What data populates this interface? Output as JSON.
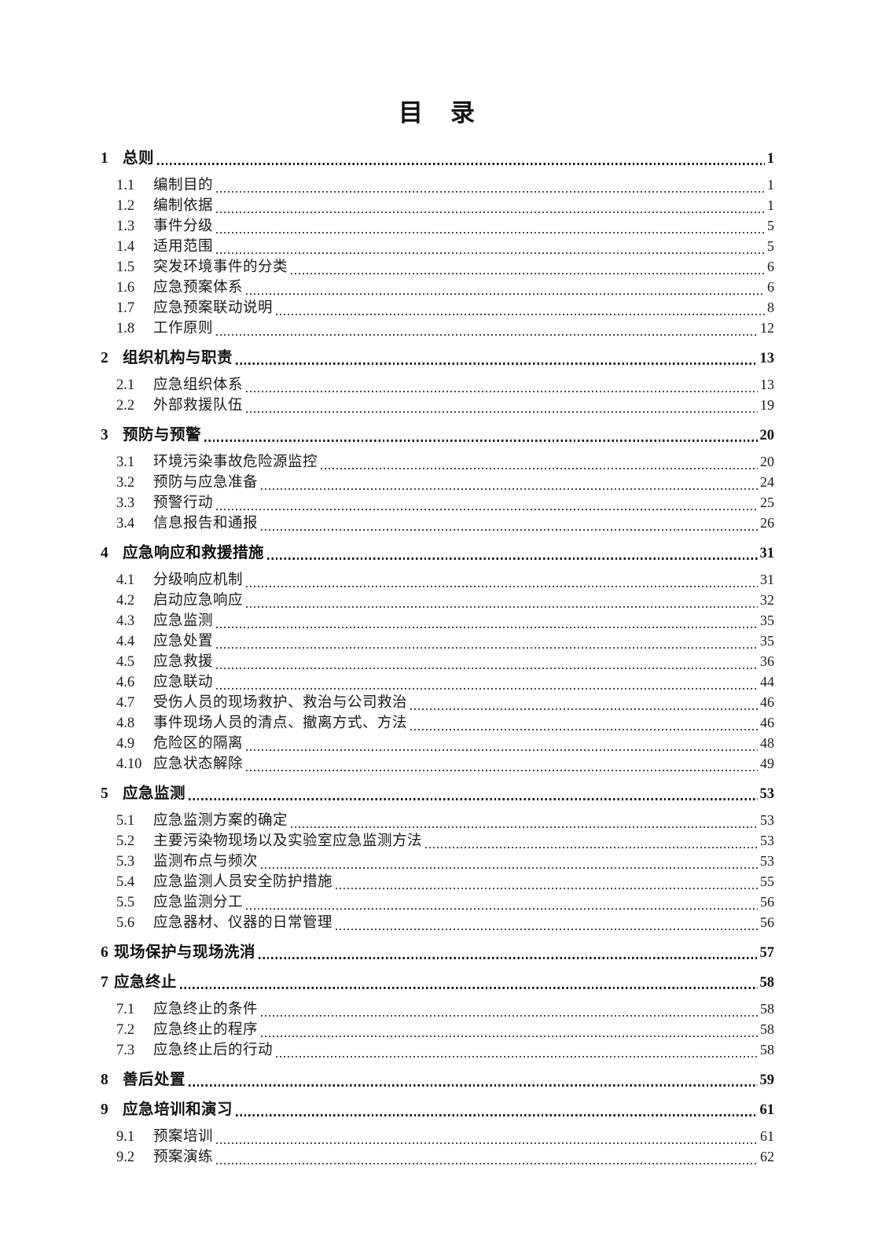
{
  "document": {
    "title": "目　录",
    "colors": {
      "text": "#1a1a1a",
      "background": "#ffffff"
    },
    "toc": {
      "entries": [
        {
          "level": 1,
          "num": "1",
          "title": "总则",
          "page": "1",
          "tight": false
        },
        {
          "level": 2,
          "num": "1.1",
          "title": "编制目的",
          "page": "1"
        },
        {
          "level": 2,
          "num": "1.2",
          "title": "编制依据",
          "page": "1"
        },
        {
          "level": 2,
          "num": "1.3",
          "title": "事件分级",
          "page": "5"
        },
        {
          "level": 2,
          "num": "1.4",
          "title": "适用范围",
          "page": "5"
        },
        {
          "level": 2,
          "num": "1.5",
          "title": "突发环境事件的分类",
          "page": "6"
        },
        {
          "level": 2,
          "num": "1.6",
          "title": "应急预案体系",
          "page": "6"
        },
        {
          "level": 2,
          "num": "1.7",
          "title": "应急预案联动说明",
          "page": "8"
        },
        {
          "level": 2,
          "num": "1.8",
          "title": "工作原则",
          "page": "12"
        },
        {
          "level": 1,
          "num": "2",
          "title": "组织机构与职责",
          "page": "13",
          "tight": false
        },
        {
          "level": 2,
          "num": "2.1",
          "title": "应急组织体系",
          "page": "13"
        },
        {
          "level": 2,
          "num": "2.2",
          "title": "外部救援队伍",
          "page": "19"
        },
        {
          "level": 1,
          "num": "3",
          "title": "预防与预警",
          "page": "20",
          "tight": false
        },
        {
          "level": 2,
          "num": "3.1",
          "title": "环境污染事故危险源监控",
          "page": "20"
        },
        {
          "level": 2,
          "num": "3.2",
          "title": "预防与应急准备",
          "page": "24"
        },
        {
          "level": 2,
          "num": "3.3",
          "title": "预警行动",
          "page": "25"
        },
        {
          "level": 2,
          "num": "3.4",
          "title": "信息报告和通报",
          "page": "26"
        },
        {
          "level": 1,
          "num": "4",
          "title": "应急响应和救援措施",
          "page": "31",
          "tight": false
        },
        {
          "level": 2,
          "num": "4.1",
          "title": "分级响应机制",
          "page": "31"
        },
        {
          "level": 2,
          "num": "4.2",
          "title": "启动应急响应",
          "page": "32"
        },
        {
          "level": 2,
          "num": "4.3",
          "title": "应急监测",
          "page": "35"
        },
        {
          "level": 2,
          "num": "4.4",
          "title": "应急处置",
          "page": "35"
        },
        {
          "level": 2,
          "num": "4.5",
          "title": "应急救援",
          "page": "36"
        },
        {
          "level": 2,
          "num": "4.6",
          "title": "应急联动",
          "page": "44"
        },
        {
          "level": 2,
          "num": "4.7",
          "title": "受伤人员的现场救护、救治与公司救治",
          "page": "46"
        },
        {
          "level": 2,
          "num": "4.8",
          "title": "事件现场人员的清点、撤离方式、方法",
          "page": "46"
        },
        {
          "level": 2,
          "num": "4.9",
          "title": "危险区的隔离",
          "page": "48"
        },
        {
          "level": 2,
          "num": "4.10",
          "title": "应急状态解除",
          "page": "49"
        },
        {
          "level": 1,
          "num": "5",
          "title": "应急监测",
          "page": "53",
          "tight": false
        },
        {
          "level": 2,
          "num": "5.1",
          "title": "应急监测方案的确定",
          "page": "53"
        },
        {
          "level": 2,
          "num": "5.2",
          "title": "主要污染物现场以及实验室应急监测方法",
          "page": "53"
        },
        {
          "level": 2,
          "num": "5.3",
          "title": "监测布点与频次",
          "page": "53"
        },
        {
          "level": 2,
          "num": "5.4",
          "title": "应急监测人员安全防护措施",
          "page": "55"
        },
        {
          "level": 2,
          "num": "5.5",
          "title": "应急监测分工",
          "page": "56"
        },
        {
          "level": 2,
          "num": "5.6",
          "title": "应急器材、仪器的日常管理",
          "page": "56"
        },
        {
          "level": 1,
          "num": "6",
          "title": "现场保护与现场洗消",
          "page": "57",
          "tight": true
        },
        {
          "level": 1,
          "num": "7",
          "title": "应急终止",
          "page": "58",
          "tight": true
        },
        {
          "level": 2,
          "num": "7.1",
          "title": "应急终止的条件",
          "page": "58"
        },
        {
          "level": 2,
          "num": "7.2",
          "title": "应急终止的程序",
          "page": "58"
        },
        {
          "level": 2,
          "num": "7.3",
          "title": "应急终止后的行动",
          "page": "58"
        },
        {
          "level": 1,
          "num": "8",
          "title": "善后处置",
          "page": "59",
          "tight": false
        },
        {
          "level": 1,
          "num": "9",
          "title": "应急培训和演习",
          "page": "61",
          "tight": false
        },
        {
          "level": 2,
          "num": "9.1",
          "title": "预案培训",
          "page": "61"
        },
        {
          "level": 2,
          "num": "9.2",
          "title": "预案演练",
          "page": "62"
        }
      ]
    }
  }
}
